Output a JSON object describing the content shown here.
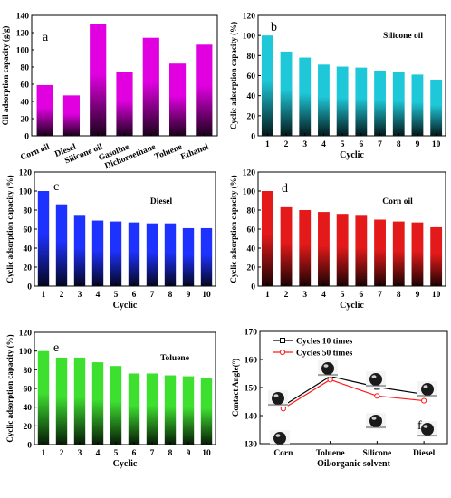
{
  "chart_data": [
    {
      "type": "bar",
      "panel": "a",
      "title": "",
      "ylabel": "Oil adsorption capacity (g/g)",
      "xlabel": "",
      "ylim": [
        0,
        140
      ],
      "yticks": [
        0,
        20,
        40,
        60,
        80,
        100,
        120,
        140
      ],
      "categories": [
        "Corn oil",
        "Diesel",
        "Silicone oil",
        "Gasoline",
        "Dichoroethane",
        "Toluene",
        "Ethanol"
      ],
      "values": [
        59,
        47,
        130,
        74,
        114,
        84,
        106
      ],
      "color": "#e000e0"
    },
    {
      "type": "bar",
      "panel": "b",
      "title": "Silicone oil",
      "ylabel": "Cyclic adsorption capacity (%)",
      "xlabel": "Cyclic",
      "ylim": [
        0,
        120
      ],
      "yticks": [
        0,
        20,
        40,
        60,
        80,
        100,
        120
      ],
      "categories": [
        "1",
        "2",
        "3",
        "4",
        "5",
        "6",
        "7",
        "8",
        "9",
        "10"
      ],
      "values": [
        100,
        84,
        78,
        71,
        69,
        68,
        65,
        64,
        61,
        56
      ],
      "color": "#1ec8d8"
    },
    {
      "type": "bar",
      "panel": "c",
      "title": "Diesel",
      "ylabel": "Cyclic adsorption capacity (%)",
      "xlabel": "Cyclic",
      "ylim": [
        0,
        120
      ],
      "yticks": [
        0,
        20,
        40,
        60,
        80,
        100,
        120
      ],
      "categories": [
        "1",
        "2",
        "3",
        "4",
        "5",
        "6",
        "7",
        "8",
        "9",
        "10"
      ],
      "values": [
        100,
        86,
        74,
        69,
        68,
        67,
        66,
        66,
        61,
        61
      ],
      "color": "#1e32ff"
    },
    {
      "type": "bar",
      "panel": "d",
      "title": "Corn oil",
      "ylabel": "Cyclic adsorption capacity (%)",
      "xlabel": "Cyclic",
      "ylim": [
        0,
        120
      ],
      "yticks": [
        0,
        20,
        40,
        60,
        80,
        100,
        120
      ],
      "categories": [
        "1",
        "2",
        "3",
        "4",
        "5",
        "6",
        "7",
        "8",
        "9",
        "10"
      ],
      "values": [
        100,
        83,
        80,
        78,
        76,
        74,
        70,
        68,
        67,
        62
      ],
      "color": "#e41a1a"
    },
    {
      "type": "bar",
      "panel": "e",
      "title": "Toluene",
      "ylabel": "Cyclic adsorption capacity (%)",
      "xlabel": "Cyclic",
      "ylim": [
        0,
        120
      ],
      "yticks": [
        0,
        20,
        40,
        60,
        80,
        100,
        120
      ],
      "categories": [
        "1",
        "2",
        "3",
        "4",
        "5",
        "6",
        "7",
        "8",
        "9",
        "10"
      ],
      "values": [
        100,
        93,
        93,
        88,
        84,
        76,
        76,
        74,
        73,
        71
      ],
      "color": "#3ee030"
    },
    {
      "type": "line",
      "panel": "f",
      "title": "",
      "ylabel": "Contact Angle(°)",
      "xlabel": "Oil/organic solvent",
      "ylim": [
        130,
        170
      ],
      "yticks": [
        130,
        140,
        150,
        160,
        170
      ],
      "categories": [
        "Corn",
        "Toluene",
        "Silicone",
        "Diesel"
      ],
      "legend_position": "top-left",
      "series": [
        {
          "name": "Cycles 10 times",
          "values": [
            143.5,
            154.0,
            150.2,
            147.6
          ],
          "color": "#000000"
        },
        {
          "name": "Cycles 50 times",
          "values": [
            142.5,
            152.8,
            147.0,
            145.3
          ],
          "color": "#ff1a1a"
        }
      ]
    }
  ]
}
